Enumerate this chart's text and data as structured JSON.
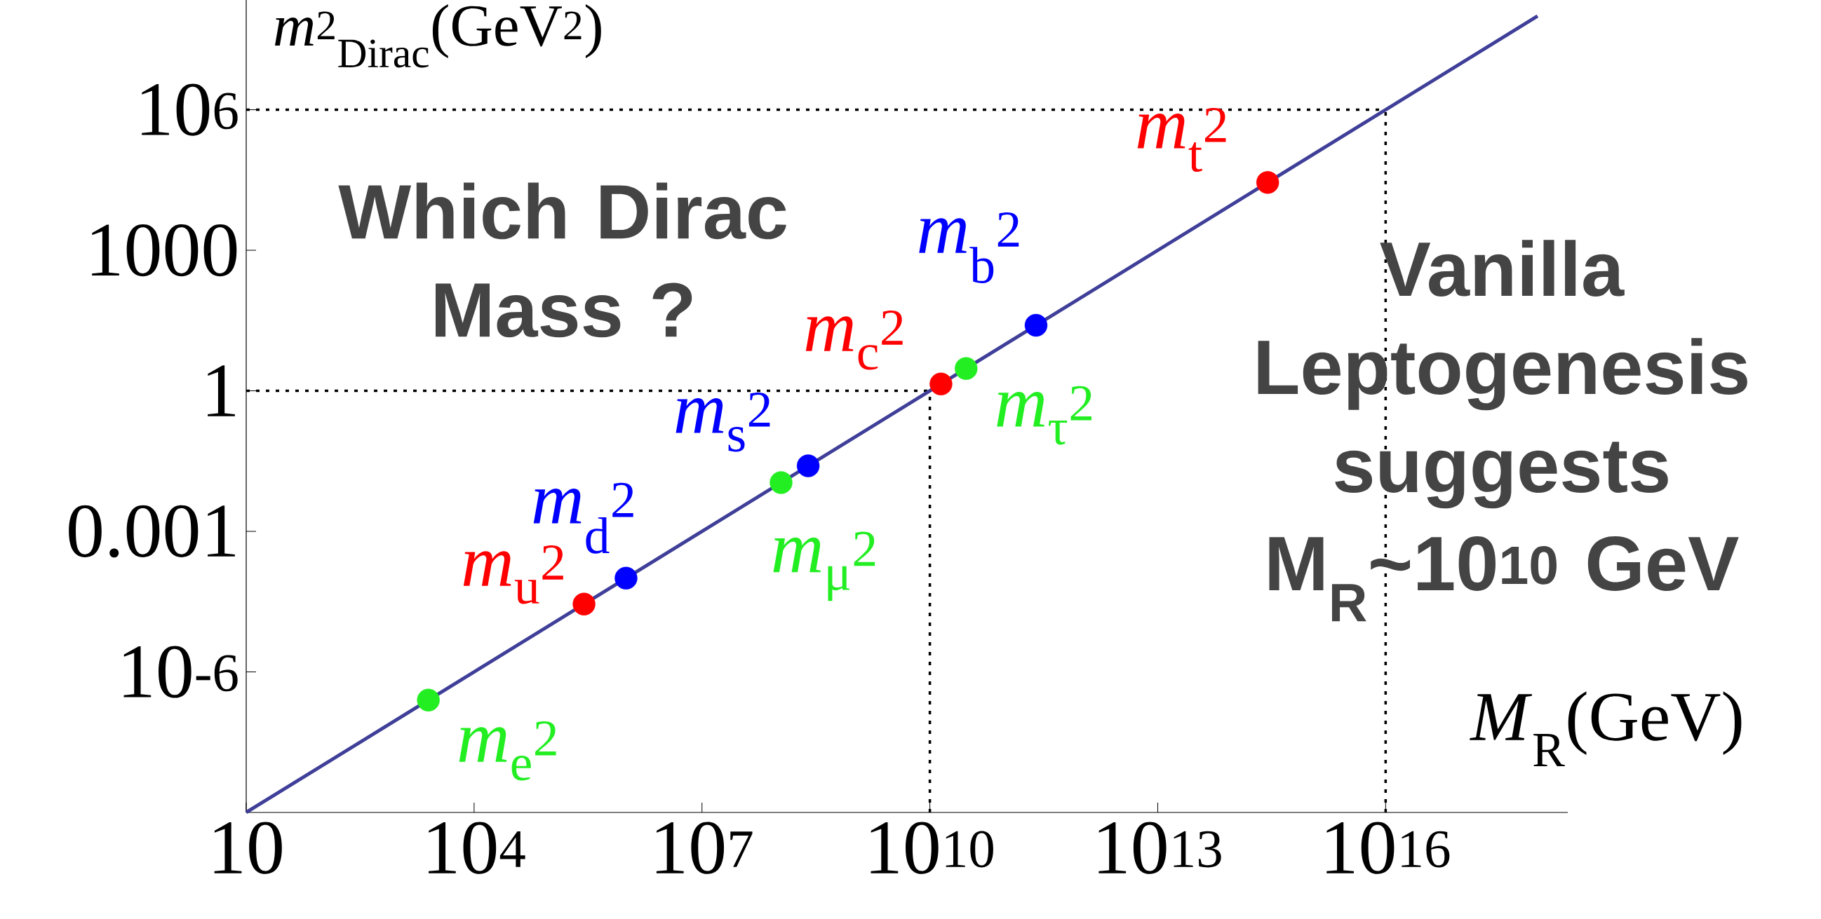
{
  "chart_data": {
    "type": "scatter",
    "xlabel": "*M*$_{R}$(GeV)",
    "ylabel": "*m*$^{2}$$_{Dirac}$(GeV$^{2}$)",
    "log": "xy",
    "xlim": [
      10,
      2.5e+18
    ],
    "ylim": [
      1e-09,
      220000000.0
    ],
    "xticks": [
      10,
      {
        "value": 10000.0,
        "label": "10$^{4}$"
      },
      {
        "value": 10000000.0,
        "label": "10$^{7}$"
      },
      {
        "value": 10000000000.0,
        "label": "10$^{10}$"
      },
      {
        "value": 10000000000000.0,
        "label": "10$^{13}$"
      },
      {
        "value": 1e+16,
        "label": "10$^{16}$"
      }
    ],
    "yticks": [
      {
        "value": 1e-06,
        "label": "10$^{-6}$"
      },
      0.001,
      1,
      1000,
      {
        "value": 1000000.0,
        "label": "10$^{6}$"
      }
    ],
    "series": [
      {
        "type": "line",
        "color": "#3f3f99",
        "marker": "none",
        "x": [
          10,
          1e+18
        ],
        "values": [
          1e-09,
          100000000.0
        ]
      },
      {
        "marker": "circle",
        "x": [
          2500.0,
          280000.0,
          1000000.0,
          110000000.0,
          250000000.0,
          14000000000.0,
          30000000000.0,
          250000000000.0,
          280000000000000.0
        ],
        "values": [
          2.5e-07,
          2.8e-05,
          0.0001,
          0.011,
          0.025,
          1.4,
          3,
          25,
          28000.0
        ],
        "colors": [
          "#22ee22",
          "#ff0000",
          "#0000ff",
          "#22ee22",
          "#0000ff",
          "#ff0000",
          "#22ee22",
          "#0000ff",
          "#ff0000"
        ]
      }
    ],
    "ref_lines": [
      {
        "axis": "y",
        "value": 1,
        "line_style": "dotted"
      },
      {
        "axis": "x",
        "value": 10000000000.0,
        "line_style": "dotted"
      },
      {
        "axis": "y",
        "value": 1000000.0,
        "line_style": "dotted"
      },
      {
        "axis": "x",
        "value": 1e+16,
        "line_style": "dotted"
      }
    ],
    "annotations": [
      "Which Dirac Mass ?",
      "Vanilla Leptogenesis suggests M$_{R}$~10$^{10}$ GeV",
      {
        "text": "*m*$_{e}$$^{2}$",
        "x": 2500.0,
        "y": 2.5e-07
      },
      {
        "text": "*m*$_{u}$$^{2}$",
        "x": 280000.0,
        "y": 2.8e-05
      },
      {
        "text": "*m*$_{d}$$^{2}$",
        "x": 1000000.0,
        "y": 0.0001
      },
      {
        "text": "*m*$_{μ}$$^{2}$",
        "x": 110000000.0,
        "y": 0.011
      },
      {
        "text": "*m*$_{s}$$^{2}$",
        "x": 250000000.0,
        "y": 0.025
      },
      {
        "text": "*m*$_{c}$$^{2}$",
        "x": 14000000000.0,
        "y": 1.4
      },
      {
        "text": "*m*$_{τ}$$^{2}$",
        "x": 30000000000.0,
        "y": 3
      },
      {
        "text": "*m*$_{b}$$^{2}$",
        "x": 250000000000.0,
        "y": 25
      },
      {
        "text": "*m*$_{t}$$^{2}$",
        "x": 280000000000000.0,
        "y": 28000.0
      }
    ]
  }
}
